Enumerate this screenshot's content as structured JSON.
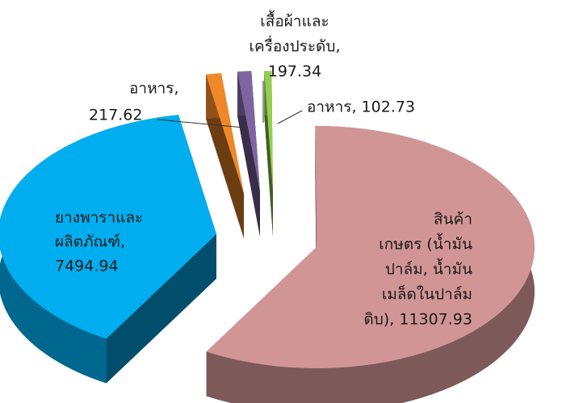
{
  "chart_data": {
    "type": "pie",
    "values": [
      217.62,
      197.34,
      102.73,
      11307.93,
      7494.94
    ],
    "value_labels": [
      [
        "อาหาร,",
        "217.62"
      ],
      [
        "เสื้อผ้าและ",
        "เครื่องประดับ,",
        "197.34"
      ],
      [
        "อาหาร, 102.73"
      ],
      [
        "สินค้า",
        "เกษตร (น้ำมัน",
        "ปาล์ม, น้ำมัน",
        "เมล็ดในปาล์ม",
        "ดิบ), 11307.93"
      ],
      [
        "ยางพาราและ",
        "ผลิตภัณฑ์,",
        "7494.94"
      ]
    ],
    "colors": [
      "#f0882a",
      "#8064a2",
      "#92d050",
      "#d29595",
      "#00aeef"
    ]
  }
}
